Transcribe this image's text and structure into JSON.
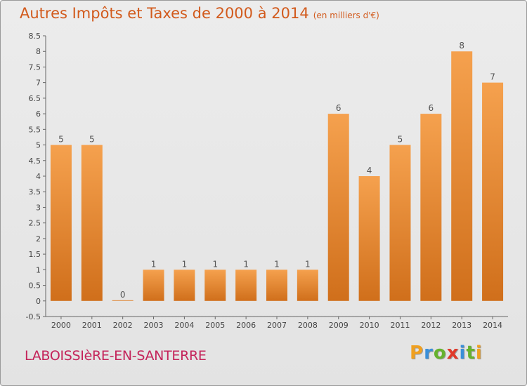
{
  "title": "Autres Impôts et Taxes de 2000 à 2014",
  "unit": "(en milliers d'€)",
  "commune": "LABOISSIèRE-EN-SANTERRE",
  "brand": [
    "P",
    "r",
    "o",
    "x",
    "i",
    "t",
    "i"
  ],
  "colors": {
    "title": "#d25a1c",
    "commune": "#c4245a",
    "bar_light": "#f5a14e",
    "bar_dark": "#d06f1b",
    "background": "#e6e6e6"
  },
  "chart_data": {
    "type": "bar",
    "categories": [
      "2000",
      "2001",
      "2002",
      "2003",
      "2004",
      "2005",
      "2006",
      "2007",
      "2008",
      "2009",
      "2010",
      "2011",
      "2012",
      "2013",
      "2014"
    ],
    "values": [
      5,
      5,
      0,
      1,
      1,
      1,
      1,
      1,
      1,
      6,
      4,
      5,
      6,
      8,
      7
    ],
    "value_labels": [
      "5",
      "5",
      "0",
      "1",
      "1",
      "1",
      "1",
      "1",
      "1",
      "6",
      "4",
      "5",
      "6",
      "8",
      "7"
    ],
    "yticks": [
      "-0.5",
      "0",
      "0.5",
      "1",
      "1.5",
      "2",
      "2.5",
      "3",
      "3.5",
      "4",
      "4.5",
      "5",
      "5.5",
      "6",
      "6.5",
      "7",
      "7.5",
      "8",
      "8.5"
    ],
    "ylim": [
      -0.5,
      8.5
    ],
    "grid": false
  }
}
